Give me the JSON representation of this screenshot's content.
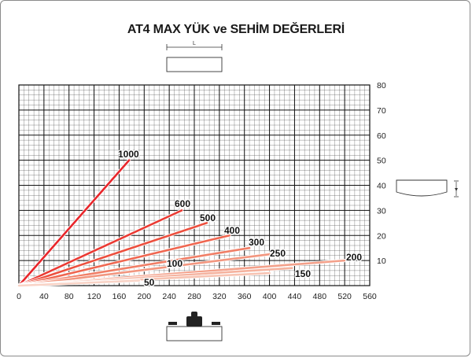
{
  "chart_data": {
    "type": "line",
    "title": "AT4 MAX YÜK ve SEHİM DEĞERLERİ",
    "xlabel": "",
    "ylabel": "",
    "xlim": [
      0,
      560
    ],
    "ylim": [
      0,
      80
    ],
    "x_ticks": [
      0,
      40,
      80,
      120,
      160,
      200,
      240,
      280,
      320,
      360,
      400,
      440,
      480,
      520,
      560
    ],
    "y_ticks": [
      10,
      20,
      30,
      40,
      50,
      60,
      70,
      80
    ],
    "grid": true,
    "top_diagram_label": "L",
    "series": [
      {
        "name": "1000",
        "x": [
          0,
          176
        ],
        "y": [
          0,
          50
        ],
        "color": "#e8262b"
      },
      {
        "name": "600",
        "x": [
          0,
          260
        ],
        "y": [
          0,
          30
        ],
        "color": "#ea3a33"
      },
      {
        "name": "500",
        "x": [
          0,
          300
        ],
        "y": [
          0,
          25
        ],
        "color": "#ec4f3e"
      },
      {
        "name": "400",
        "x": [
          0,
          336
        ],
        "y": [
          0,
          20
        ],
        "color": "#ef6650"
      },
      {
        "name": "300",
        "x": [
          0,
          368
        ],
        "y": [
          0,
          15
        ],
        "color": "#f07e66"
      },
      {
        "name": "250",
        "x": [
          0,
          400
        ],
        "y": [
          0,
          12.5
        ],
        "color": "#f2967f"
      },
      {
        "name": "200",
        "x": [
          0,
          520
        ],
        "y": [
          0,
          10
        ],
        "color": "#f3a08a"
      },
      {
        "name": "150",
        "x": [
          0,
          436
        ],
        "y": [
          0,
          7
        ],
        "color": "#f5b29e"
      },
      {
        "name": "100",
        "x": [
          0,
          400
        ],
        "y": [
          0,
          5
        ],
        "color": "#f7c3b2"
      },
      {
        "name": "50",
        "x": [
          0,
          192
        ],
        "y": [
          0,
          2
        ],
        "color": "#f9d3c6"
      }
    ]
  }
}
